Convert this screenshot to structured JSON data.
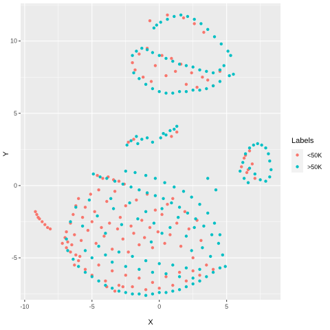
{
  "chart_data": {
    "type": "scatter",
    "xlabel": "X",
    "ylabel": "Y",
    "xlim": [
      -10.3,
      9.0
    ],
    "ylim": [
      -7.9,
      12.6
    ],
    "x_ticks": [
      "-10",
      "-5",
      "0",
      "5"
    ],
    "y_ticks": [
      "-5",
      "0",
      "5",
      "10"
    ],
    "grid": true,
    "legend": {
      "title": "Labels",
      "placement": "right",
      "entries": [
        {
          "name": "<50K",
          "color": "#F8766D"
        },
        {
          "name": ">50K",
          "color": "#00BFC4"
        }
      ]
    },
    "series": [
      {
        "name": "<50K",
        "color": "#F8766D",
        "points": [
          [
            -9.2,
            -1.8
          ],
          [
            -9.1,
            -2.0
          ],
          [
            -9.0,
            -2.2
          ],
          [
            -8.9,
            -2.3
          ],
          [
            -8.7,
            -2.5
          ],
          [
            -8.5,
            -2.7
          ],
          [
            -8.3,
            -2.9
          ],
          [
            -8.1,
            -3.0
          ],
          [
            -7.2,
            -4.0
          ],
          [
            -7.0,
            -3.6
          ],
          [
            -6.9,
            -4.3
          ],
          [
            -6.8,
            -3.9
          ],
          [
            -6.6,
            -4.6
          ],
          [
            -6.5,
            -4.1
          ],
          [
            -6.3,
            -3.4
          ],
          [
            -6.2,
            -4.8
          ],
          [
            -6.9,
            -3.2
          ],
          [
            -6.6,
            -2.6
          ],
          [
            -6.4,
            -2.0
          ],
          [
            -6.2,
            -1.4
          ],
          [
            -6.0,
            -0.9
          ],
          [
            -5.8,
            -3.8
          ],
          [
            -5.7,
            -2.2
          ],
          [
            -5.5,
            -1.5
          ],
          [
            -5.3,
            -3.1
          ],
          [
            -5.1,
            -0.6
          ],
          [
            -5.0,
            -2.5
          ],
          [
            -4.8,
            -1.8
          ],
          [
            -4.7,
            -4.0
          ],
          [
            -4.5,
            -0.3
          ],
          [
            -4.3,
            -2.9
          ],
          [
            -4.1,
            -3.5
          ],
          [
            -3.9,
            -1.1
          ],
          [
            -3.7,
            -2.6
          ],
          [
            -3.5,
            -4.4
          ],
          [
            -3.3,
            -0.4
          ],
          [
            -3.1,
            -3.0
          ],
          [
            -2.9,
            -2.2
          ],
          [
            -2.7,
            -3.7
          ],
          [
            -2.5,
            -1.4
          ],
          [
            -2.3,
            -4.6
          ],
          [
            -2.1,
            -2.8
          ],
          [
            -1.9,
            -3.3
          ],
          [
            -1.7,
            -1.0
          ],
          [
            -1.5,
            -4.1
          ],
          [
            -1.3,
            -2.4
          ],
          [
            -1.1,
            -3.6
          ],
          [
            -0.9,
            -0.6
          ],
          [
            -0.7,
            -2.9
          ],
          [
            -0.5,
            -4.3
          ],
          [
            -0.3,
            -1.7
          ],
          [
            -0.1,
            -3.2
          ],
          [
            0.2,
            -2.0
          ],
          [
            0.4,
            -4.0
          ],
          [
            0.6,
            -1.3
          ],
          [
            0.8,
            -3.4
          ],
          [
            1.0,
            -0.9
          ],
          [
            1.3,
            -2.6
          ],
          [
            1.6,
            -4.2
          ],
          [
            1.9,
            -1.8
          ],
          [
            2.2,
            -3.0
          ],
          [
            2.5,
            -5.0
          ],
          [
            2.8,
            -2.4
          ],
          [
            3.1,
            -3.8
          ],
          [
            -6.0,
            -5.2
          ],
          [
            -5.5,
            -5.8
          ],
          [
            -5.0,
            -6.2
          ],
          [
            -4.5,
            -5.5
          ],
          [
            -4.0,
            -6.6
          ],
          [
            -3.5,
            -5.9
          ],
          [
            -3.0,
            -6.9
          ],
          [
            -2.5,
            -6.2
          ],
          [
            -2.0,
            -7.0
          ],
          [
            -1.5,
            -6.4
          ],
          [
            -1.0,
            -7.2
          ],
          [
            -0.5,
            -6.7
          ],
          [
            0.0,
            -7.1
          ],
          [
            0.5,
            -6.3
          ],
          [
            1.0,
            -6.9
          ],
          [
            1.5,
            -6.0
          ],
          [
            2.0,
            -6.6
          ],
          [
            2.5,
            -5.9
          ],
          [
            3.0,
            -6.2
          ],
          [
            3.5,
            -5.5
          ],
          [
            4.0,
            -5.8
          ],
          [
            -4.6,
            0.7
          ],
          [
            -4.2,
            0.5
          ],
          [
            -3.8,
            0.6
          ],
          [
            -3.4,
            0.4
          ],
          [
            -3.0,
            0.3
          ],
          [
            -2.6,
            0.1
          ],
          [
            -3.9,
            -7.0
          ],
          [
            -3.3,
            -7.3
          ],
          [
            -2.7,
            -7.0
          ],
          [
            -6.3,
            -5.5
          ],
          [
            -5.9,
            -4.9
          ],
          [
            -2.0,
            8.5
          ],
          [
            -1.8,
            8.0
          ],
          [
            -1.5,
            9.1
          ],
          [
            -1.2,
            7.5
          ],
          [
            -0.9,
            9.5
          ],
          [
            -0.6,
            7.2
          ],
          [
            -0.3,
            8.3
          ],
          [
            0.2,
            9.0
          ],
          [
            0.5,
            7.6
          ],
          [
            0.9,
            8.8
          ],
          [
            1.2,
            7.9
          ],
          [
            1.6,
            8.4
          ],
          [
            2.0,
            7.0
          ],
          [
            2.4,
            7.8
          ],
          [
            2.8,
            6.8
          ],
          [
            3.2,
            7.5
          ],
          [
            3.6,
            7.3
          ],
          [
            4.0,
            6.9
          ],
          [
            4.5,
            7.9
          ],
          [
            1.8,
            11.6
          ],
          [
            2.6,
            11.2
          ],
          [
            3.3,
            10.6
          ],
          [
            -0.7,
            11.4
          ],
          [
            0.6,
            11.8
          ],
          [
            6.1,
            1.3
          ],
          [
            6.3,
            1.9
          ],
          [
            6.5,
            0.9
          ],
          [
            6.7,
            2.4
          ],
          [
            6.9,
            1.5
          ],
          [
            7.1,
            0.5
          ],
          [
            6.4,
            2.1
          ],
          [
            6.6,
            1.1
          ],
          [
            -2.3,
            3.0
          ],
          [
            -1.9,
            3.2
          ],
          [
            0.9,
            3.4
          ],
          [
            1.3,
            3.7
          ]
        ]
      },
      {
        "name": ">50K",
        "color": "#00BFC4",
        "points": [
          [
            -4.9,
            0.8
          ],
          [
            -4.4,
            0.6
          ],
          [
            -3.9,
            0.5
          ],
          [
            -3.3,
            0.3
          ],
          [
            -2.7,
            0.1
          ],
          [
            -2.1,
            -0.1
          ],
          [
            -1.5,
            -0.3
          ],
          [
            -0.9,
            -0.5
          ],
          [
            -0.3,
            -0.7
          ],
          [
            0.3,
            -0.9
          ],
          [
            0.9,
            -1.2
          ],
          [
            1.5,
            -1.5
          ],
          [
            2.1,
            -1.9
          ],
          [
            2.7,
            -2.3
          ],
          [
            3.3,
            -2.8
          ],
          [
            3.9,
            -3.4
          ],
          [
            4.4,
            -4.0
          ],
          [
            4.7,
            -4.8
          ],
          [
            4.9,
            -5.6
          ],
          [
            -2.5,
            1.0
          ],
          [
            -1.8,
            0.9
          ],
          [
            -1.0,
            0.7
          ],
          [
            -0.3,
            0.5
          ],
          [
            0.4,
            0.2
          ],
          [
            1.1,
            -0.1
          ],
          [
            1.8,
            -0.4
          ],
          [
            2.4,
            -0.8
          ],
          [
            3.0,
            -1.3
          ],
          [
            3.6,
            -1.9
          ],
          [
            4.1,
            -2.6
          ],
          [
            4.5,
            -3.4
          ],
          [
            -6.8,
            -4.5
          ],
          [
            -6.4,
            -5.1
          ],
          [
            -6.0,
            -5.6
          ],
          [
            -5.5,
            -6.0
          ],
          [
            -5.0,
            -6.3
          ],
          [
            -4.5,
            -6.6
          ],
          [
            -4.0,
            -6.9
          ],
          [
            -3.5,
            -7.1
          ],
          [
            -3.0,
            -7.3
          ],
          [
            -2.5,
            -7.4
          ],
          [
            -2.0,
            -7.5
          ],
          [
            -1.5,
            -7.5
          ],
          [
            -1.0,
            -7.6
          ],
          [
            -0.5,
            -7.5
          ],
          [
            0.0,
            -7.4
          ],
          [
            0.5,
            -7.4
          ],
          [
            1.0,
            -7.3
          ],
          [
            1.5,
            -7.2
          ],
          [
            2.0,
            -7.0
          ],
          [
            2.5,
            -6.8
          ],
          [
            3.0,
            -6.6
          ],
          [
            3.5,
            -6.3
          ],
          [
            4.0,
            -6.0
          ],
          [
            4.5,
            -5.7
          ],
          [
            -5.5,
            -4.5
          ],
          [
            -5.0,
            -5.0
          ],
          [
            -4.5,
            -4.2
          ],
          [
            -4.0,
            -4.8
          ],
          [
            -3.5,
            -5.3
          ],
          [
            -3.0,
            -4.6
          ],
          [
            -2.5,
            -5.6
          ],
          [
            -2.0,
            -4.9
          ],
          [
            -1.5,
            -5.8
          ],
          [
            -1.0,
            -5.2
          ],
          [
            -0.5,
            -6.0
          ],
          [
            0.0,
            -5.4
          ],
          [
            0.5,
            -6.1
          ],
          [
            1.0,
            -5.5
          ],
          [
            1.5,
            -6.3
          ],
          [
            2.0,
            -5.7
          ],
          [
            2.5,
            -6.4
          ],
          [
            3.0,
            -5.8
          ],
          [
            -6.2,
            -1.5
          ],
          [
            -5.7,
            -2.8
          ],
          [
            -5.2,
            -1.0
          ],
          [
            -4.6,
            -2.1
          ],
          [
            -4.0,
            -3.3
          ],
          [
            -3.4,
            -1.6
          ],
          [
            -2.8,
            -2.7
          ],
          [
            -2.2,
            -1.2
          ],
          [
            -1.6,
            -2.3
          ],
          [
            -1.0,
            -1.8
          ],
          [
            -0.4,
            -2.6
          ],
          [
            0.2,
            -1.6
          ],
          [
            0.8,
            -2.9
          ],
          [
            1.4,
            -2.2
          ],
          [
            2.0,
            -3.5
          ],
          [
            2.6,
            -2.9
          ],
          [
            3.2,
            -4.3
          ],
          [
            3.8,
            -4.9
          ],
          [
            -6.6,
            -2.5
          ],
          [
            -6.9,
            -3.7
          ],
          [
            -2.4,
            2.8
          ],
          [
            -2.1,
            3.1
          ],
          [
            -1.7,
            3.4
          ],
          [
            -1.3,
            3.2
          ],
          [
            -0.9,
            3.3
          ],
          [
            -0.5,
            3.0
          ],
          [
            0.1,
            3.3
          ],
          [
            0.5,
            3.5
          ],
          [
            0.8,
            3.8
          ],
          [
            1.1,
            3.9
          ],
          [
            1.3,
            4.1
          ],
          [
            0.3,
            3.6
          ],
          [
            -1.6,
            2.9
          ],
          [
            -0.4,
            10.9
          ],
          [
            0.1,
            11.3
          ],
          [
            0.6,
            11.5
          ],
          [
            1.1,
            11.7
          ],
          [
            1.6,
            11.8
          ],
          [
            2.1,
            11.7
          ],
          [
            2.6,
            11.5
          ],
          [
            3.1,
            11.2
          ],
          [
            3.6,
            10.8
          ],
          [
            4.1,
            10.3
          ],
          [
            4.6,
            9.8
          ],
          [
            5.1,
            9.3
          ],
          [
            5.3,
            9.0
          ],
          [
            -0.2,
            11.1
          ],
          [
            -2.0,
            9.0
          ],
          [
            -1.7,
            9.3
          ],
          [
            -1.3,
            9.5
          ],
          [
            -0.9,
            9.4
          ],
          [
            -0.5,
            9.2
          ],
          [
            0.0,
            9.0
          ],
          [
            0.5,
            8.8
          ],
          [
            1.0,
            8.6
          ],
          [
            1.5,
            8.4
          ],
          [
            2.0,
            8.3
          ],
          [
            2.5,
            8.2
          ],
          [
            3.0,
            8.0
          ],
          [
            3.5,
            7.9
          ],
          [
            4.0,
            7.8
          ],
          [
            4.5,
            8.0
          ],
          [
            4.8,
            8.3
          ],
          [
            -1.9,
            7.8
          ],
          [
            -1.5,
            7.4
          ],
          [
            -1.0,
            7.0
          ],
          [
            -0.5,
            6.7
          ],
          [
            0.0,
            6.5
          ],
          [
            0.5,
            6.4
          ],
          [
            1.0,
            6.4
          ],
          [
            1.5,
            6.5
          ],
          [
            2.0,
            6.5
          ],
          [
            2.5,
            6.6
          ],
          [
            3.0,
            6.6
          ],
          [
            3.5,
            6.7
          ],
          [
            4.0,
            6.9
          ],
          [
            4.5,
            7.2
          ],
          [
            5.2,
            7.6
          ],
          [
            5.5,
            7.7
          ],
          [
            6.0,
            1.0
          ],
          [
            6.2,
            1.6
          ],
          [
            6.4,
            2.2
          ],
          [
            6.7,
            2.6
          ],
          [
            7.0,
            2.8
          ],
          [
            7.3,
            2.9
          ],
          [
            7.6,
            2.8
          ],
          [
            7.9,
            2.6
          ],
          [
            8.1,
            2.2
          ],
          [
            8.2,
            1.7
          ],
          [
            8.3,
            1.1
          ],
          [
            8.2,
            0.6
          ],
          [
            7.9,
            0.3
          ],
          [
            7.5,
            0.4
          ],
          [
            7.1,
            0.8
          ],
          [
            6.7,
            1.2
          ],
          [
            6.3,
            0.5
          ],
          [
            6.6,
            0.2
          ],
          [
            3.6,
            0.5
          ],
          [
            4.2,
            -0.3
          ],
          [
            2.4,
            -4.5
          ],
          [
            -0.6,
            -3.9
          ],
          [
            -3.6,
            -0.9
          ],
          [
            0.2,
            -3.3
          ]
        ]
      }
    ]
  }
}
